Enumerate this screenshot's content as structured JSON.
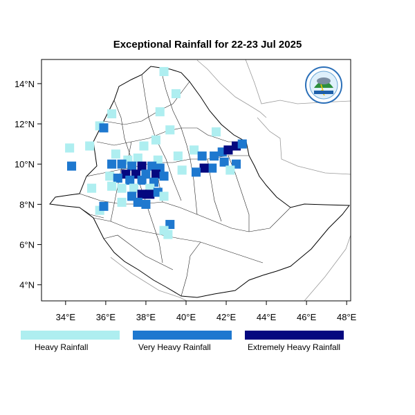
{
  "title": "Exceptional Rainfall for 22-23 Jul 2025",
  "axes": {
    "lon_ticks": [
      {
        "value": 34,
        "label": "34°E"
      },
      {
        "value": 36,
        "label": "36°E"
      },
      {
        "value": 38,
        "label": "38°E"
      },
      {
        "value": 40,
        "label": "40°E"
      },
      {
        "value": 42,
        "label": "42°E"
      },
      {
        "value": 44,
        "label": "44°E"
      },
      {
        "value": 46,
        "label": "46°E"
      },
      {
        "value": 48,
        "label": "48°E"
      }
    ],
    "lat_ticks": [
      {
        "value": 4,
        "label": "4°N"
      },
      {
        "value": 6,
        "label": "6°N"
      },
      {
        "value": 8,
        "label": "8°N"
      },
      {
        "value": 10,
        "label": "10°N"
      },
      {
        "value": 12,
        "label": "12°N"
      },
      {
        "value": 14,
        "label": "14°N"
      }
    ],
    "lon_range": [
      32.8,
      48.2
    ],
    "lat_range": [
      3.2,
      15.2
    ]
  },
  "legend": [
    {
      "label": "Heavy Rainfall",
      "color": "#aeeef0"
    },
    {
      "label": "Very Heavy Rainfall",
      "color": "#1e78cf"
    },
    {
      "label": "Extremely Heavy Rainfall",
      "color": "#05087f"
    }
  ],
  "logo_icon": "ethiopian-meteorology-institute-logo",
  "rainfall_cells": [
    {
      "lon": 38.9,
      "lat": 14.6,
      "cls": 0
    },
    {
      "lon": 39.5,
      "lat": 13.5,
      "cls": 0
    },
    {
      "lon": 36.3,
      "lat": 12.5,
      "cls": 0
    },
    {
      "lon": 38.7,
      "lat": 12.6,
      "cls": 0
    },
    {
      "lon": 35.7,
      "lat": 11.9,
      "cls": 0
    },
    {
      "lon": 35.9,
      "lat": 11.8,
      "cls": 1
    },
    {
      "lon": 39.2,
      "lat": 11.7,
      "cls": 0
    },
    {
      "lon": 41.5,
      "lat": 11.6,
      "cls": 0
    },
    {
      "lon": 38.5,
      "lat": 11.2,
      "cls": 0
    },
    {
      "lon": 37.9,
      "lat": 10.9,
      "cls": 0
    },
    {
      "lon": 34.2,
      "lat": 10.8,
      "cls": 0
    },
    {
      "lon": 35.2,
      "lat": 10.9,
      "cls": 0
    },
    {
      "lon": 36.5,
      "lat": 10.5,
      "cls": 0
    },
    {
      "lon": 37.1,
      "lat": 10.2,
      "cls": 0
    },
    {
      "lon": 37.6,
      "lat": 10.3,
      "cls": 0
    },
    {
      "lon": 38.6,
      "lat": 10.2,
      "cls": 0
    },
    {
      "lon": 39.6,
      "lat": 10.4,
      "cls": 0
    },
    {
      "lon": 40.4,
      "lat": 10.7,
      "cls": 0
    },
    {
      "lon": 40.8,
      "lat": 10.4,
      "cls": 1
    },
    {
      "lon": 41.4,
      "lat": 10.4,
      "cls": 1
    },
    {
      "lon": 41.8,
      "lat": 10.6,
      "cls": 1
    },
    {
      "lon": 42.1,
      "lat": 10.7,
      "cls": 2
    },
    {
      "lon": 42.5,
      "lat": 10.9,
      "cls": 2
    },
    {
      "lon": 42.8,
      "lat": 11.0,
      "cls": 1
    },
    {
      "lon": 41.9,
      "lat": 10.1,
      "cls": 1
    },
    {
      "lon": 41.3,
      "lat": 9.8,
      "cls": 1
    },
    {
      "lon": 40.9,
      "lat": 9.8,
      "cls": 2
    },
    {
      "lon": 40.5,
      "lat": 9.6,
      "cls": 1
    },
    {
      "lon": 42.5,
      "lat": 10.0,
      "cls": 1
    },
    {
      "lon": 42.2,
      "lat": 9.7,
      "cls": 0
    },
    {
      "lon": 39.8,
      "lat": 9.7,
      "cls": 0
    },
    {
      "lon": 36.3,
      "lat": 10.0,
      "cls": 1
    },
    {
      "lon": 36.8,
      "lat": 10.0,
      "cls": 1
    },
    {
      "lon": 37.3,
      "lat": 9.9,
      "cls": 1
    },
    {
      "lon": 37.8,
      "lat": 9.9,
      "cls": 2
    },
    {
      "lon": 38.3,
      "lat": 9.9,
      "cls": 1
    },
    {
      "lon": 38.7,
      "lat": 9.8,
      "cls": 1
    },
    {
      "lon": 37.0,
      "lat": 9.5,
      "cls": 2
    },
    {
      "lon": 37.5,
      "lat": 9.5,
      "cls": 2
    },
    {
      "lon": 38.0,
      "lat": 9.5,
      "cls": 1
    },
    {
      "lon": 38.5,
      "lat": 9.5,
      "cls": 2
    },
    {
      "lon": 38.9,
      "lat": 9.4,
      "cls": 1
    },
    {
      "lon": 36.2,
      "lat": 9.4,
      "cls": 0
    },
    {
      "lon": 36.6,
      "lat": 9.3,
      "cls": 1
    },
    {
      "lon": 37.2,
      "lat": 9.2,
      "cls": 1
    },
    {
      "lon": 37.8,
      "lat": 9.2,
      "cls": 1
    },
    {
      "lon": 38.4,
      "lat": 9.1,
      "cls": 1
    },
    {
      "lon": 36.3,
      "lat": 8.9,
      "cls": 0
    },
    {
      "lon": 36.8,
      "lat": 8.8,
      "cls": 0
    },
    {
      "lon": 37.4,
      "lat": 8.8,
      "cls": 0
    },
    {
      "lon": 38.2,
      "lat": 8.8,
      "cls": 0
    },
    {
      "lon": 37.3,
      "lat": 8.4,
      "cls": 1
    },
    {
      "lon": 37.8,
      "lat": 8.5,
      "cls": 2
    },
    {
      "lon": 38.2,
      "lat": 8.5,
      "cls": 2
    },
    {
      "lon": 38.6,
      "lat": 8.6,
      "cls": 1
    },
    {
      "lon": 38.9,
      "lat": 8.4,
      "cls": 0
    },
    {
      "lon": 37.6,
      "lat": 8.1,
      "cls": 1
    },
    {
      "lon": 38.0,
      "lat": 8.0,
      "cls": 1
    },
    {
      "lon": 36.8,
      "lat": 8.1,
      "cls": 0
    },
    {
      "lon": 34.3,
      "lat": 9.9,
      "cls": 1
    },
    {
      "lon": 35.3,
      "lat": 8.8,
      "cls": 0
    },
    {
      "lon": 35.7,
      "lat": 7.7,
      "cls": 0
    },
    {
      "lon": 35.9,
      "lat": 7.9,
      "cls": 1
    },
    {
      "lon": 39.2,
      "lat": 7.0,
      "cls": 1
    },
    {
      "lon": 38.9,
      "lat": 6.7,
      "cls": 0
    },
    {
      "lon": 39.1,
      "lat": 6.5,
      "cls": 0
    }
  ]
}
